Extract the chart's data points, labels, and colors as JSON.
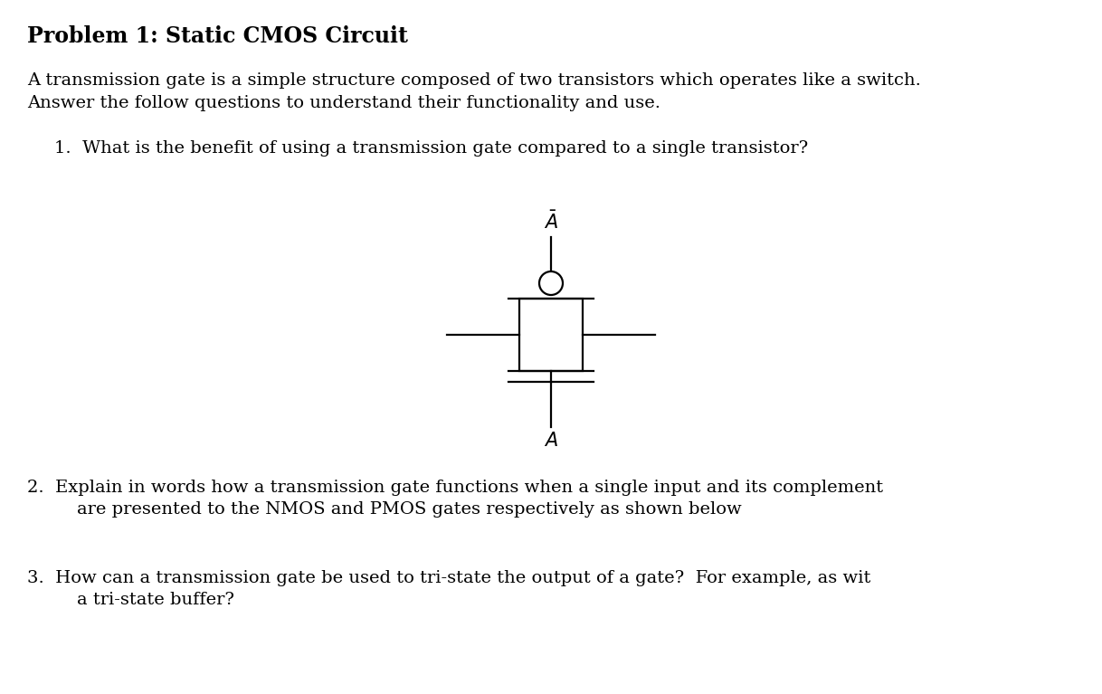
{
  "title": "Problem 1: Static CMOS Circuit",
  "title_fontsize": 17,
  "bg_color": "#ffffff",
  "text_color": "#000000",
  "body_line1": "A transmission gate is a simple structure composed of two transistors which operates like a switch.",
  "body_line2": "Answer the follow questions to understand their functionality and use.",
  "body_fontsize": 14,
  "q1": "1.  What is the benefit of using a transmission gate compared to a single transistor?",
  "q2_line1": "2.  Explain in words how a transmission gate functions when a single input and its complement",
  "q2_line2": "    are presented to the NMOS and PMOS gates respectively as shown below",
  "q3_line1": "3.  How can a transmission gate be used to tri-state the output of a gate?  For example, as wit",
  "q3_line2": "    a tri-state buffer?",
  "q_fontsize": 14,
  "lw": 1.6
}
